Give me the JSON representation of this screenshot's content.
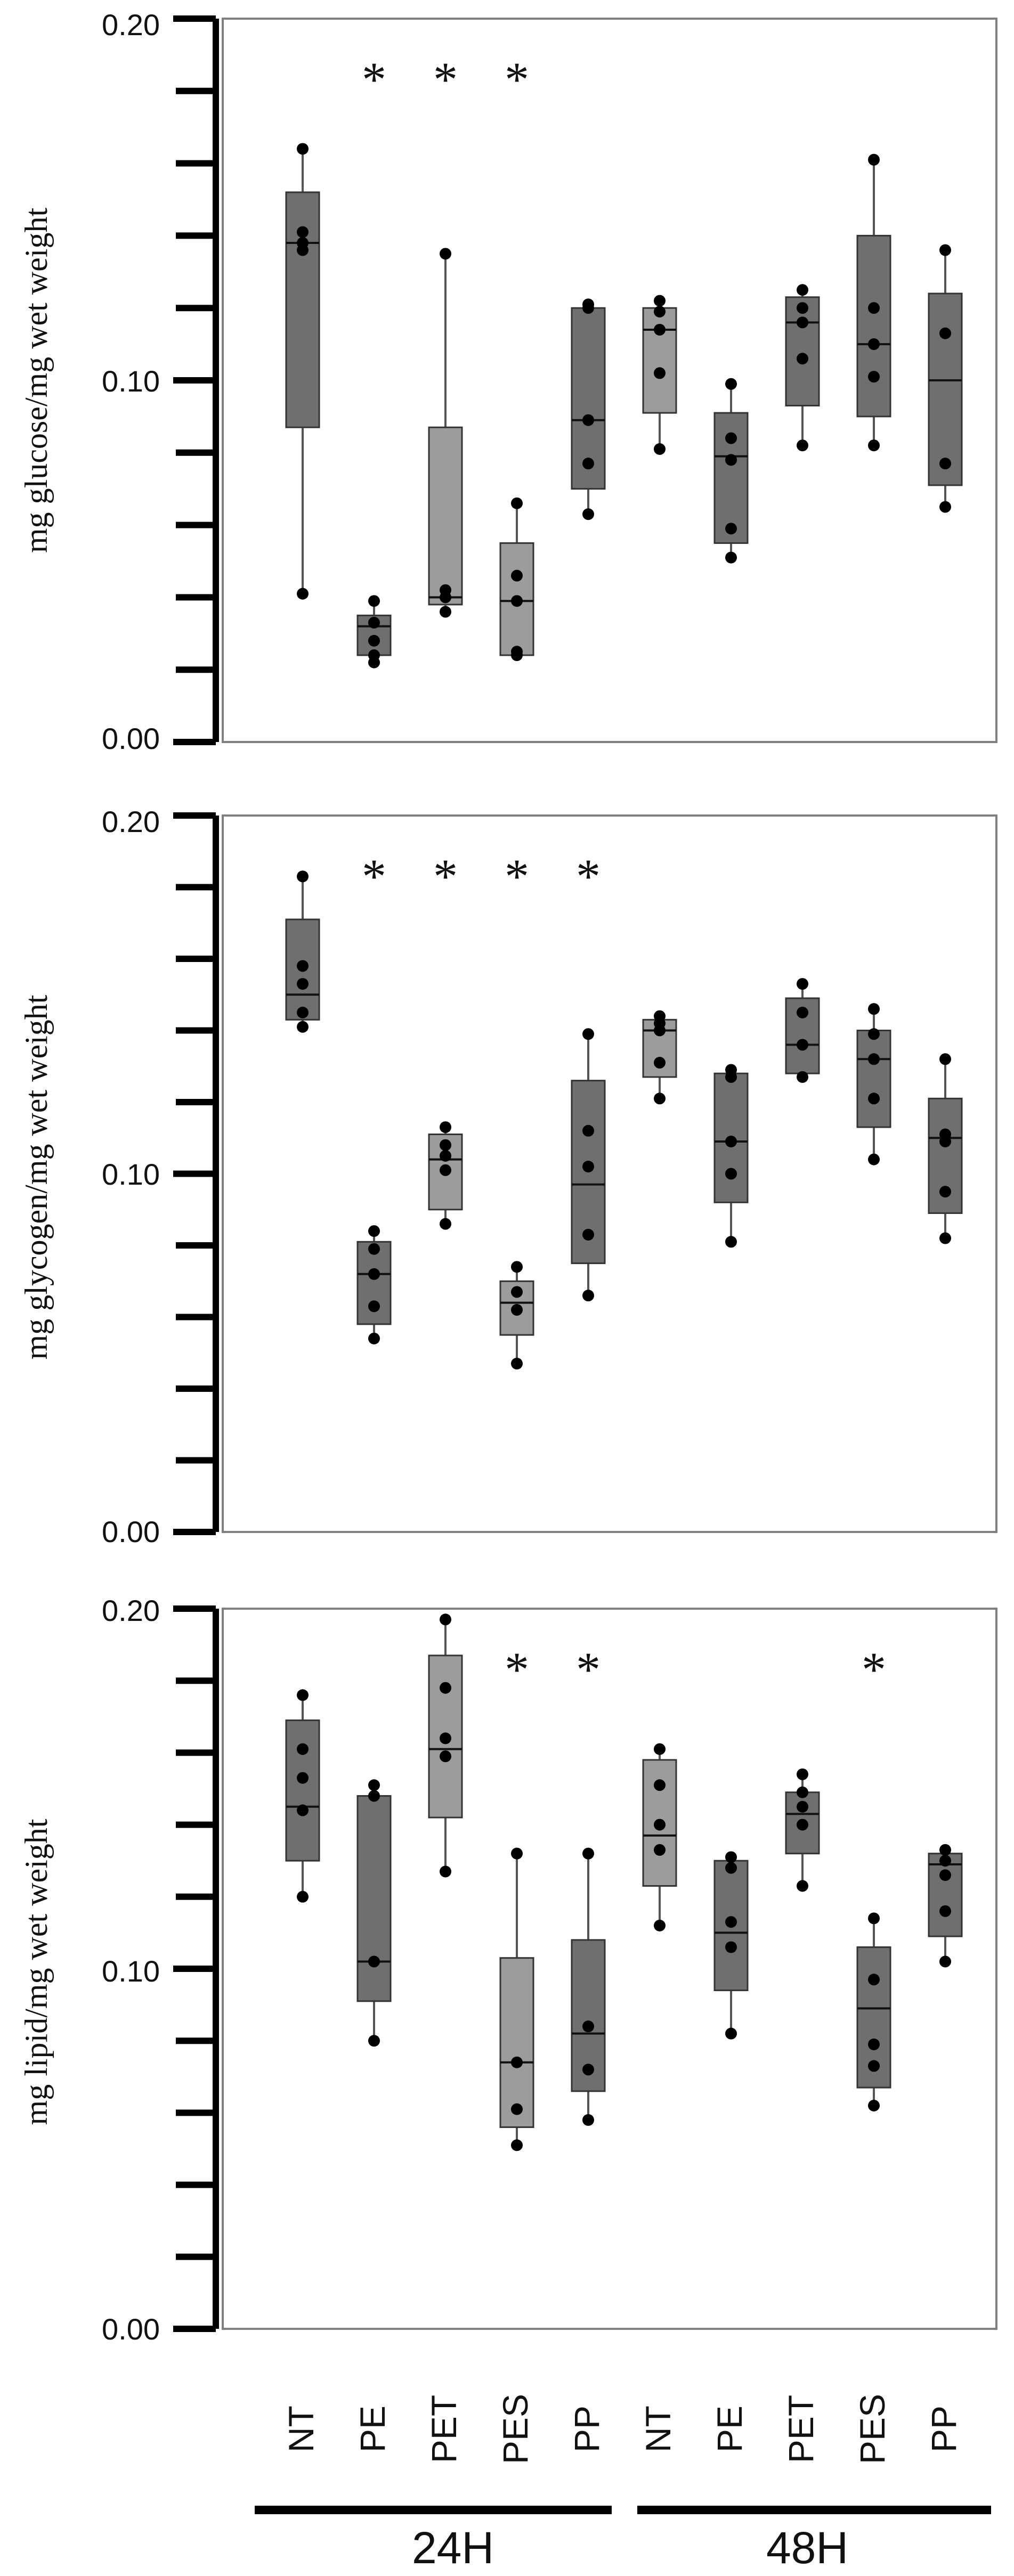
{
  "chart_data": [
    {
      "type": "box",
      "ylabel": "mg glucose/mg wet weight",
      "ylim": [
        0,
        0.2
      ],
      "yticks": [
        "0.00",
        "0.10",
        "0.20"
      ],
      "categories": [
        "NT",
        "PE",
        "PET",
        "PES",
        "PP",
        "NT",
        "PE",
        "PET",
        "PES",
        "PP"
      ],
      "boxes": [
        {
          "whisker_low": 0.041,
          "q1": 0.087,
          "median": 0.138,
          "q3": 0.152,
          "whisker_high": 0.164,
          "points": [
            0.041,
            0.136,
            0.138,
            0.141,
            0.164
          ],
          "star": false,
          "shade": "dark"
        },
        {
          "whisker_low": 0.022,
          "q1": 0.024,
          "median": 0.032,
          "q3": 0.035,
          "whisker_high": 0.039,
          "points": [
            0.022,
            0.024,
            0.028,
            0.033,
            0.039
          ],
          "star": true,
          "shade": "dark"
        },
        {
          "whisker_low": 0.036,
          "q1": 0.038,
          "median": 0.04,
          "q3": 0.087,
          "whisker_high": 0.135,
          "points": [
            0.036,
            0.04,
            0.042,
            0.135
          ],
          "star": true,
          "shade": "light"
        },
        {
          "whisker_low": 0.024,
          "q1": 0.024,
          "median": 0.039,
          "q3": 0.055,
          "whisker_high": 0.066,
          "points": [
            0.024,
            0.025,
            0.039,
            0.046,
            0.066
          ],
          "star": true,
          "shade": "light"
        },
        {
          "whisker_low": 0.063,
          "q1": 0.07,
          "median": 0.089,
          "q3": 0.12,
          "whisker_high": 0.121,
          "points": [
            0.063,
            0.077,
            0.089,
            0.12,
            0.121
          ],
          "star": false,
          "shade": "dark"
        },
        {
          "whisker_low": 0.081,
          "q1": 0.091,
          "median": 0.114,
          "q3": 0.12,
          "whisker_high": 0.122,
          "points": [
            0.081,
            0.102,
            0.114,
            0.119,
            0.122
          ],
          "star": false,
          "shade": "light"
        },
        {
          "whisker_low": 0.051,
          "q1": 0.055,
          "median": 0.079,
          "q3": 0.091,
          "whisker_high": 0.099,
          "points": [
            0.051,
            0.059,
            0.078,
            0.084,
            0.099
          ],
          "star": false,
          "shade": "dark"
        },
        {
          "whisker_low": 0.082,
          "q1": 0.093,
          "median": 0.116,
          "q3": 0.123,
          "whisker_high": 0.125,
          "points": [
            0.082,
            0.106,
            0.116,
            0.12,
            0.125
          ],
          "star": false,
          "shade": "dark"
        },
        {
          "whisker_low": 0.082,
          "q1": 0.09,
          "median": 0.11,
          "q3": 0.14,
          "whisker_high": 0.161,
          "points": [
            0.082,
            0.101,
            0.11,
            0.12,
            0.161
          ],
          "star": false,
          "shade": "dark"
        },
        {
          "whisker_low": 0.065,
          "q1": 0.071,
          "median": 0.1,
          "q3": 0.124,
          "whisker_high": 0.136,
          "points": [
            0.065,
            0.077,
            0.113,
            0.136
          ],
          "star": false,
          "shade": "dark"
        }
      ]
    },
    {
      "type": "box",
      "ylabel": "mg glycogen/mg wet weight",
      "ylim": [
        0,
        0.2
      ],
      "yticks": [
        "0.00",
        "0.10",
        "0.20"
      ],
      "categories": [
        "NT",
        "PE",
        "PET",
        "PES",
        "PP",
        "NT",
        "PE",
        "PET",
        "PES",
        "PP"
      ],
      "boxes": [
        {
          "whisker_low": 0.141,
          "q1": 0.143,
          "median": 0.15,
          "q3": 0.171,
          "whisker_high": 0.183,
          "points": [
            0.141,
            0.145,
            0.153,
            0.158,
            0.183
          ],
          "star": false,
          "shade": "dark"
        },
        {
          "whisker_low": 0.054,
          "q1": 0.058,
          "median": 0.072,
          "q3": 0.081,
          "whisker_high": 0.084,
          "points": [
            0.054,
            0.063,
            0.072,
            0.079,
            0.084
          ],
          "star": true,
          "shade": "dark"
        },
        {
          "whisker_low": 0.086,
          "q1": 0.09,
          "median": 0.104,
          "q3": 0.111,
          "whisker_high": 0.113,
          "points": [
            0.086,
            0.101,
            0.105,
            0.108,
            0.113
          ],
          "star": true,
          "shade": "light"
        },
        {
          "whisker_low": 0.047,
          "q1": 0.055,
          "median": 0.064,
          "q3": 0.07,
          "whisker_high": 0.074,
          "points": [
            0.047,
            0.062,
            0.067,
            0.074
          ],
          "star": true,
          "shade": "light"
        },
        {
          "whisker_low": 0.066,
          "q1": 0.075,
          "median": 0.097,
          "q3": 0.126,
          "whisker_high": 0.139,
          "points": [
            0.066,
            0.083,
            0.102,
            0.112,
            0.139
          ],
          "star": true,
          "shade": "dark"
        },
        {
          "whisker_low": 0.121,
          "q1": 0.127,
          "median": 0.14,
          "q3": 0.143,
          "whisker_high": 0.144,
          "points": [
            0.121,
            0.131,
            0.14,
            0.142,
            0.144
          ],
          "star": false,
          "shade": "light"
        },
        {
          "whisker_low": 0.081,
          "q1": 0.092,
          "median": 0.109,
          "q3": 0.128,
          "whisker_high": 0.129,
          "points": [
            0.081,
            0.1,
            0.109,
            0.127,
            0.129
          ],
          "star": false,
          "shade": "dark"
        },
        {
          "whisker_low": 0.127,
          "q1": 0.128,
          "median": 0.136,
          "q3": 0.149,
          "whisker_high": 0.153,
          "points": [
            0.127,
            0.136,
            0.145,
            0.153
          ],
          "star": false,
          "shade": "dark"
        },
        {
          "whisker_low": 0.104,
          "q1": 0.113,
          "median": 0.132,
          "q3": 0.14,
          "whisker_high": 0.146,
          "points": [
            0.104,
            0.121,
            0.132,
            0.139,
            0.146
          ],
          "star": false,
          "shade": "dark"
        },
        {
          "whisker_low": 0.082,
          "q1": 0.089,
          "median": 0.11,
          "q3": 0.121,
          "whisker_high": 0.132,
          "points": [
            0.082,
            0.095,
            0.109,
            0.111,
            0.132
          ],
          "star": false,
          "shade": "dark"
        }
      ]
    },
    {
      "type": "box",
      "ylabel": "mg lipid/mg wet weight",
      "ylim": [
        0,
        0.2
      ],
      "yticks": [
        "0.00",
        "0.10",
        "0.20"
      ],
      "categories": [
        "NT",
        "PE",
        "PET",
        "PES",
        "PP",
        "NT",
        "PE",
        "PET",
        "PES",
        "PP"
      ],
      "boxes": [
        {
          "whisker_low": 0.12,
          "q1": 0.13,
          "median": 0.145,
          "q3": 0.169,
          "whisker_high": 0.176,
          "points": [
            0.12,
            0.144,
            0.153,
            0.161,
            0.176
          ],
          "star": false,
          "shade": "dark"
        },
        {
          "whisker_low": 0.08,
          "q1": 0.091,
          "median": 0.102,
          "q3": 0.148,
          "whisker_high": 0.151,
          "points": [
            0.08,
            0.102,
            0.148,
            0.151
          ],
          "star": false,
          "shade": "dark"
        },
        {
          "whisker_low": 0.127,
          "q1": 0.142,
          "median": 0.161,
          "q3": 0.187,
          "whisker_high": 0.197,
          "points": [
            0.127,
            0.159,
            0.164,
            0.178,
            0.197
          ],
          "star": false,
          "shade": "light"
        },
        {
          "whisker_low": 0.051,
          "q1": 0.056,
          "median": 0.074,
          "q3": 0.103,
          "whisker_high": 0.132,
          "points": [
            0.051,
            0.061,
            0.074,
            0.132
          ],
          "star": true,
          "shade": "light"
        },
        {
          "whisker_low": 0.058,
          "q1": 0.066,
          "median": 0.082,
          "q3": 0.108,
          "whisker_high": 0.132,
          "points": [
            0.058,
            0.072,
            0.084,
            0.132
          ],
          "star": true,
          "shade": "dark"
        },
        {
          "whisker_low": 0.112,
          "q1": 0.123,
          "median": 0.137,
          "q3": 0.158,
          "whisker_high": 0.161,
          "points": [
            0.112,
            0.133,
            0.14,
            0.151,
            0.161
          ],
          "star": false,
          "shade": "light"
        },
        {
          "whisker_low": 0.082,
          "q1": 0.094,
          "median": 0.11,
          "q3": 0.13,
          "whisker_high": 0.131,
          "points": [
            0.082,
            0.106,
            0.113,
            0.128,
            0.131
          ],
          "star": false,
          "shade": "dark"
        },
        {
          "whisker_low": 0.123,
          "q1": 0.132,
          "median": 0.143,
          "q3": 0.149,
          "whisker_high": 0.154,
          "points": [
            0.123,
            0.14,
            0.145,
            0.149,
            0.154
          ],
          "star": false,
          "shade": "dark"
        },
        {
          "whisker_low": 0.062,
          "q1": 0.067,
          "median": 0.089,
          "q3": 0.106,
          "whisker_high": 0.114,
          "points": [
            0.062,
            0.073,
            0.079,
            0.097,
            0.114
          ],
          "star": true,
          "shade": "dark"
        },
        {
          "whisker_low": 0.102,
          "q1": 0.109,
          "median": 0.129,
          "q3": 0.132,
          "whisker_high": 0.133,
          "points": [
            0.102,
            0.116,
            0.126,
            0.13,
            0.133
          ],
          "star": false,
          "shade": "dark"
        }
      ]
    }
  ],
  "categories": [
    "NT",
    "PE",
    "PET",
    "PES",
    "PP",
    "NT",
    "PE",
    "PET",
    "PES",
    "PP"
  ],
  "groups": [
    "24H",
    "48H"
  ],
  "significance_marker": "*",
  "colors": {
    "dark_box": "#6f6f6f",
    "light_box": "#9c9c9c",
    "axis": "#000000",
    "frame": "#808080",
    "point": "#000000"
  }
}
